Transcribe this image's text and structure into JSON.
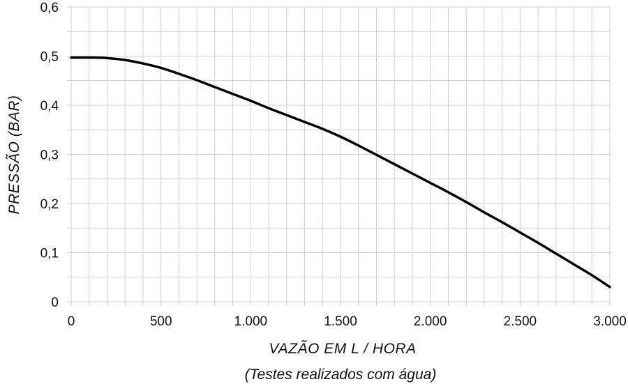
{
  "chart_data": {
    "type": "line",
    "xlabel": "VAZÃO EM L / HORA",
    "note": "(Testes realizados com água)",
    "ylabel": "PRESSÃO  (BAR)",
    "xlim": [
      0,
      3000
    ],
    "ylim": [
      0,
      0.6
    ],
    "grid": true,
    "x_ticks": [
      0,
      500,
      1000,
      1500,
      2000,
      2500,
      3000
    ],
    "x_tick_labels": [
      "0",
      "500",
      "1.000",
      "1.500",
      "2.000",
      "2.500",
      "3.000"
    ],
    "y_ticks": [
      0,
      0.1,
      0.2,
      0.3,
      0.4,
      0.5,
      0.6
    ],
    "y_tick_labels": [
      "0",
      "0,1",
      "0,2",
      "0,3",
      "0,4",
      "0,5",
      "0,6"
    ],
    "x_minor_step": 100,
    "y_minor_step": 0.05,
    "series": [
      {
        "color": "#000000",
        "x": [
          0,
          100,
          200,
          300,
          400,
          500,
          600,
          700,
          800,
          900,
          1000,
          1100,
          1200,
          1300,
          1400,
          1500,
          1600,
          1700,
          1800,
          1900,
          2000,
          2100,
          2200,
          2300,
          2400,
          2500,
          2600,
          2700,
          2800,
          2900,
          3000
        ],
        "y": [
          0.497,
          0.497,
          0.496,
          0.492,
          0.485,
          0.476,
          0.464,
          0.451,
          0.437,
          0.423,
          0.409,
          0.394,
          0.38,
          0.366,
          0.352,
          0.336,
          0.318,
          0.299,
          0.28,
          0.261,
          0.242,
          0.223,
          0.203,
          0.182,
          0.162,
          0.141,
          0.12,
          0.098,
          0.076,
          0.054,
          0.03
        ]
      }
    ]
  }
}
